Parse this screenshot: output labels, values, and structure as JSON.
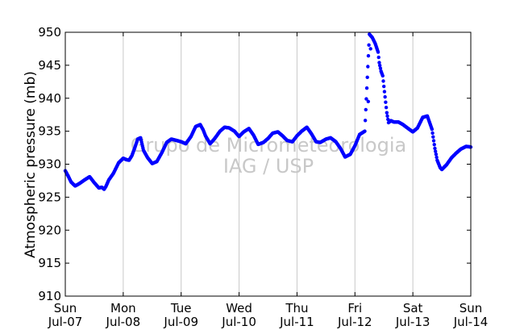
{
  "chart_data": {
    "type": "scatter",
    "title": "",
    "xlabel": "",
    "ylabel": "Atmospheric pressure (mb)",
    "ylim": [
      910,
      950
    ],
    "xlim": [
      0,
      7
    ],
    "grid": "vertical lines at day boundaries",
    "y_ticks": [
      "910",
      "915",
      "920",
      "925",
      "930",
      "935",
      "940",
      "945",
      "950"
    ],
    "x_ticks": [
      {
        "day": "Sun",
        "date": "Jul-07"
      },
      {
        "day": "Mon",
        "date": "Jul-08"
      },
      {
        "day": "Tue",
        "date": "Jul-09"
      },
      {
        "day": "Wed",
        "date": "Jul-10"
      },
      {
        "day": "Thu",
        "date": "Jul-11"
      },
      {
        "day": "Fri",
        "date": "Jul-12"
      },
      {
        "day": "Sat",
        "date": "Jul-13"
      },
      {
        "day": "Sun",
        "date": "Jul-14"
      }
    ],
    "watermark": [
      "Grupo de Micrometeorologia",
      "IAG / USP"
    ],
    "series": [
      {
        "color": "#0000ff",
        "x": [
          0.0,
          0.05,
          0.1,
          0.17,
          0.25,
          0.33,
          0.42,
          0.5,
          0.58,
          0.63,
          0.67,
          0.7,
          0.75,
          0.83,
          0.92,
          1.0,
          1.05,
          1.1,
          1.15,
          1.2,
          1.25,
          1.3,
          1.35,
          1.42,
          1.5,
          1.58,
          1.67,
          1.75,
          1.83,
          1.92,
          2.0,
          2.08,
          2.17,
          2.25,
          2.33,
          2.38,
          2.42,
          2.5,
          2.58,
          2.67,
          2.75,
          2.83,
          2.92,
          3.0,
          3.08,
          3.17,
          3.25,
          3.33,
          3.42,
          3.5,
          3.58,
          3.67,
          3.75,
          3.83,
          3.92,
          4.0,
          4.08,
          4.17,
          4.25,
          4.33,
          4.4,
          4.5,
          4.58,
          4.67,
          4.75,
          4.83,
          4.92,
          5.0,
          5.08,
          5.17,
          5.25,
          5.3,
          5.35,
          5.4,
          5.42,
          5.45,
          5.48,
          5.5,
          5.55,
          5.58,
          5.62,
          5.67,
          5.75,
          5.83,
          5.92,
          6.0,
          6.08,
          6.17,
          6.25,
          6.33,
          6.38,
          6.42,
          6.47,
          6.5,
          6.58,
          6.67,
          6.75,
          6.83,
          6.92,
          7.0
        ],
        "y": [
          929.0,
          928.2,
          927.3,
          926.7,
          927.1,
          927.6,
          928.1,
          927.2,
          926.4,
          926.5,
          926.2,
          926.6,
          927.6,
          928.6,
          930.2,
          930.9,
          930.7,
          930.6,
          931.3,
          932.5,
          933.8,
          934.0,
          932.1,
          931.0,
          930.1,
          930.4,
          931.8,
          933.3,
          933.8,
          933.6,
          933.4,
          933.1,
          934.2,
          935.7,
          936.0,
          935.2,
          934.3,
          933.1,
          933.9,
          935.0,
          935.6,
          935.5,
          935.0,
          934.2,
          934.9,
          935.4,
          934.4,
          933.0,
          933.3,
          933.9,
          934.7,
          934.9,
          934.3,
          933.6,
          933.4,
          934.3,
          935.0,
          935.6,
          934.6,
          933.4,
          933.3,
          933.8,
          934.0,
          933.4,
          932.4,
          931.1,
          931.5,
          932.8,
          934.5,
          935.0,
          949.7,
          949.2,
          948.3,
          947.0,
          945.4,
          944.1,
          943.4,
          941.8,
          937.8,
          936.3,
          936.6,
          936.4,
          936.4,
          936.0,
          935.4,
          934.9,
          935.5,
          937.1,
          937.3,
          935.3,
          932.4,
          930.6,
          929.5,
          929.2,
          929.9,
          931.0,
          931.7,
          932.3,
          932.7,
          932.6
        ],
        "outliers": {
          "x": [
            5.23,
            5.27
          ],
          "y": [
            939.5,
            947.5
          ]
        }
      }
    ]
  }
}
